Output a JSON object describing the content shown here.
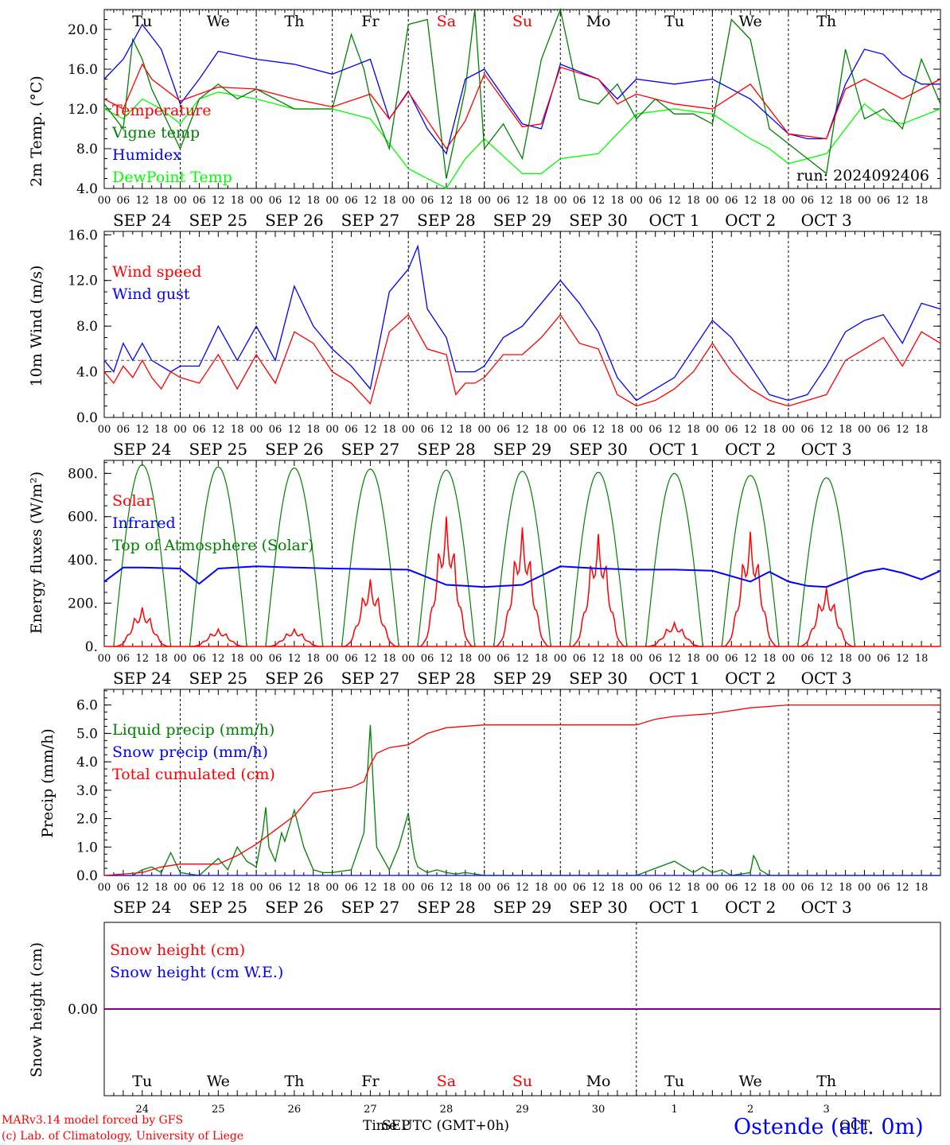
{
  "days": {
    "weekday_labels": [
      "Tu",
      "We",
      "Th",
      "Fr",
      "Sa",
      "Su",
      "Mo",
      "Tu",
      "We",
      "Th"
    ],
    "date_labels": [
      "SEP 24",
      "SEP 25",
      "SEP 26",
      "SEP 27",
      "SEP 28",
      "SEP 29",
      "SEP 30",
      "OCT  1",
      "OCT  2",
      "OCT  3"
    ],
    "day_numbers": [
      "24",
      "25",
      "26",
      "27",
      "28",
      "29",
      "30",
      "1",
      "2",
      "3"
    ],
    "hour_ticks": [
      "00",
      "06",
      "12",
      "18"
    ],
    "weekend_color": "#ff0000"
  },
  "footer": {
    "model": "MARv3.14 model forced by GFS",
    "lab": "(c) Lab. of Climatology, University of Liege",
    "time_axis": "Time UTC (GMT+0h)",
    "month_overlay": "SEP",
    "oct_overlay": "OCT",
    "station": "Ostende (alt. 0m)"
  },
  "chart_data": [
    {
      "type": "line",
      "ylabel": "2m Temp. (°C)",
      "ylim": [
        4.0,
        22.0
      ],
      "yticks": [
        "4.0",
        "8.0",
        "12.0",
        "16.0",
        "20.0"
      ],
      "annotation": "run: 2024092406",
      "x_unit": "hours since 2024-09-24 00 UTC",
      "legend_placement": "top-left",
      "series": [
        {
          "name": "Temperature",
          "color": "#ff0000",
          "x": [
            0,
            6,
            12,
            15,
            24,
            36,
            48,
            60,
            72,
            84,
            90,
            96,
            108,
            114,
            120,
            132,
            138,
            144,
            156,
            162,
            168,
            180,
            192,
            204,
            216,
            228,
            234,
            240,
            246,
            252,
            264
          ],
          "values": [
            13.0,
            12.0,
            16.5,
            15.0,
            12.8,
            14.2,
            14.0,
            13.0,
            12.2,
            13.5,
            11.0,
            13.7,
            8.0,
            10.8,
            15.5,
            10.2,
            10.5,
            16.2,
            15.0,
            12.5,
            13.5,
            12.5,
            12.0,
            14.5,
            9.5,
            9.0,
            14.0,
            15.0,
            14.0,
            13.0,
            15.0
          ]
        },
        {
          "name": "Vigne temp",
          "color": "#008000",
          "x": [
            0,
            6,
            9,
            12,
            15,
            24,
            30,
            36,
            42,
            48,
            60,
            72,
            78,
            82,
            84,
            90,
            96,
            102,
            108,
            114,
            117,
            120,
            126,
            132,
            138,
            144,
            150,
            156,
            162,
            168,
            174,
            180,
            186,
            192,
            198,
            204,
            210,
            216,
            222,
            228,
            234,
            240,
            246,
            252,
            258,
            264
          ],
          "values": [
            12.5,
            10.0,
            19.0,
            17.0,
            14.0,
            8.0,
            13.0,
            14.5,
            13.0,
            14.0,
            12.0,
            12.0,
            19.5,
            16.0,
            13.0,
            8.0,
            20.5,
            21.0,
            5.0,
            14.0,
            22.0,
            8.0,
            10.5,
            7.0,
            17.0,
            22.0,
            13.0,
            12.5,
            14.5,
            11.0,
            13.0,
            11.5,
            11.5,
            10.5,
            21.0,
            19.0,
            10.0,
            8.5,
            7.0,
            5.5,
            18.0,
            11.0,
            12.0,
            10.0,
            17.0,
            12.5
          ]
        },
        {
          "name": "Humidex",
          "color": "#0000ff",
          "x": [
            0,
            6,
            12,
            18,
            24,
            30,
            36,
            48,
            60,
            72,
            84,
            90,
            96,
            102,
            108,
            114,
            120,
            132,
            138,
            144,
            156,
            162,
            168,
            180,
            192,
            204,
            216,
            222,
            228,
            234,
            240,
            246,
            252,
            258,
            264
          ],
          "values": [
            15.0,
            17.0,
            20.5,
            18.0,
            12.5,
            15.0,
            17.8,
            17.0,
            16.5,
            15.5,
            17.0,
            11.0,
            13.8,
            10.0,
            7.5,
            15.0,
            16.0,
            10.5,
            10.0,
            16.5,
            15.0,
            13.0,
            15.0,
            14.5,
            15.0,
            13.0,
            9.5,
            9.0,
            9.0,
            14.5,
            18.0,
            17.5,
            15.5,
            14.5,
            14.5
          ]
        },
        {
          "name": "DewPoint Temp",
          "color": "#00ff00",
          "x": [
            0,
            6,
            12,
            18,
            24,
            30,
            36,
            48,
            60,
            72,
            84,
            96,
            108,
            114,
            120,
            132,
            138,
            144,
            156,
            168,
            180,
            192,
            204,
            210,
            216,
            222,
            228,
            234,
            240,
            246,
            252,
            264
          ],
          "values": [
            12.0,
            11.0,
            13.0,
            12.0,
            10.5,
            13.0,
            13.7,
            13.0,
            12.0,
            12.0,
            11.0,
            6.0,
            4.0,
            7.0,
            9.0,
            5.5,
            5.5,
            7.0,
            7.5,
            11.5,
            12.0,
            11.5,
            9.0,
            8.0,
            6.5,
            7.0,
            7.5,
            10.0,
            12.5,
            11.0,
            10.5,
            12.0
          ]
        }
      ]
    },
    {
      "type": "line",
      "ylabel": "10m Wind (m/s)",
      "ylim": [
        0.0,
        16.0
      ],
      "yticks": [
        "0.0",
        "4.0",
        "8.0",
        "12.0",
        "16.0"
      ],
      "reference_line": 5.0,
      "x_unit": "hours since 2024-09-24 00 UTC",
      "legend_placement": "top-left",
      "series": [
        {
          "name": "Wind speed",
          "color": "#ff0000",
          "x": [
            0,
            3,
            6,
            9,
            12,
            15,
            18,
            21,
            24,
            30,
            36,
            42,
            48,
            54,
            60,
            66,
            72,
            78,
            84,
            90,
            96,
            102,
            108,
            111,
            114,
            117,
            120,
            126,
            132,
            138,
            144,
            150,
            156,
            162,
            168,
            174,
            180,
            186,
            192,
            198,
            204,
            210,
            216,
            222,
            228,
            234,
            240,
            246,
            252,
            258,
            264
          ],
          "values": [
            4.0,
            3.0,
            4.5,
            3.5,
            5.0,
            3.5,
            2.5,
            4.0,
            3.5,
            3.0,
            5.5,
            2.5,
            5.5,
            3.0,
            7.5,
            6.5,
            4.0,
            3.0,
            1.2,
            7.5,
            9.0,
            6.0,
            5.5,
            2.0,
            3.0,
            3.0,
            3.5,
            5.5,
            5.5,
            7.0,
            9.0,
            6.5,
            6.0,
            2.0,
            1.0,
            1.5,
            2.5,
            4.0,
            6.5,
            4.0,
            2.5,
            1.5,
            1.0,
            1.5,
            2.0,
            5.0,
            6.0,
            7.0,
            4.5,
            7.5,
            6.5
          ]
        },
        {
          "name": "Wind gust",
          "color": "#0000ff",
          "x": [
            0,
            3,
            6,
            9,
            12,
            15,
            18,
            21,
            24,
            30,
            36,
            42,
            48,
            54,
            60,
            66,
            72,
            78,
            84,
            90,
            96,
            99,
            102,
            108,
            111,
            114,
            117,
            120,
            126,
            132,
            138,
            144,
            150,
            156,
            162,
            168,
            174,
            180,
            186,
            192,
            198,
            204,
            210,
            216,
            222,
            228,
            234,
            240,
            246,
            252,
            258,
            264
          ],
          "values": [
            5.0,
            4.0,
            6.5,
            5.0,
            6.5,
            5.0,
            4.5,
            4.0,
            4.5,
            4.5,
            8.0,
            5.0,
            8.0,
            5.0,
            11.5,
            8.0,
            6.0,
            4.5,
            2.5,
            11.0,
            13.0,
            15.0,
            9.5,
            7.0,
            4.0,
            4.0,
            4.0,
            4.5,
            7.0,
            8.0,
            10.0,
            12.0,
            10.0,
            7.5,
            3.5,
            1.5,
            2.5,
            3.5,
            6.0,
            8.5,
            7.0,
            4.5,
            2.0,
            1.5,
            2.0,
            4.5,
            7.5,
            8.5,
            9.0,
            6.5,
            10.0,
            9.5
          ]
        }
      ]
    },
    {
      "type": "line",
      "ylabel": "Energy fluxes (W/m²)",
      "ylim": [
        0,
        860
      ],
      "yticks": [
        "0.",
        "200.",
        "400.",
        "600.",
        "800."
      ],
      "x_unit": "hours since 2024-09-24 00 UTC",
      "legend_placement": "top-left",
      "toa_peaks": [
        840,
        830,
        825,
        820,
        815,
        810,
        805,
        800,
        790,
        780
      ],
      "solar_peaks": [
        180,
        80,
        80,
        310,
        600,
        550,
        520,
        110,
        530,
        270
      ],
      "series": [
        {
          "name": "Solar",
          "color": "#ff0000"
        },
        {
          "name": "Infrared",
          "color": "#0000ff",
          "x": [
            0,
            6,
            12,
            24,
            30,
            36,
            48,
            60,
            72,
            96,
            108,
            114,
            120,
            132,
            144,
            156,
            168,
            180,
            192,
            204,
            210,
            216,
            222,
            228,
            240,
            246,
            252,
            258,
            264
          ],
          "values": [
            300,
            365,
            365,
            360,
            290,
            360,
            370,
            365,
            360,
            355,
            285,
            280,
            275,
            285,
            370,
            360,
            355,
            355,
            350,
            300,
            345,
            300,
            280,
            275,
            345,
            360,
            340,
            310,
            350
          ]
        },
        {
          "name": "Top of Atmosphere (Solar)",
          "color": "#008000"
        }
      ]
    },
    {
      "type": "line",
      "ylabel": "Precip (mm/h)",
      "ylim": [
        0.0,
        6.5
      ],
      "yticks": [
        "0.0",
        "1.0",
        "2.0",
        "3.0",
        "4.0",
        "5.0",
        "6.0"
      ],
      "x_unit": "hours since 2024-09-24 00 UTC",
      "legend_placement": "top-left",
      "series": [
        {
          "name": "Liquid precip (mm/h)",
          "color": "#008000",
          "x": [
            0,
            9,
            12,
            15,
            18,
            21,
            24,
            30,
            36,
            39,
            42,
            45,
            48,
            50,
            51,
            52,
            54,
            56,
            57,
            60,
            63,
            66,
            69,
            72,
            78,
            82,
            84,
            85,
            86,
            88,
            90,
            93,
            96,
            97,
            98,
            99,
            102,
            105,
            108,
            111,
            114,
            120,
            126,
            132,
            168,
            180,
            183,
            186,
            189,
            192,
            195,
            198,
            204,
            205,
            206,
            207,
            210,
            216,
            228,
            240,
            246,
            252,
            264
          ],
          "values": [
            0,
            0,
            0.2,
            0.3,
            0.1,
            0.8,
            0.1,
            0,
            0.6,
            0.2,
            1.0,
            0.5,
            0.3,
            1.5,
            2.4,
            1.0,
            0.5,
            1.5,
            1.2,
            2.3,
            1.0,
            0.2,
            0.1,
            0.1,
            0.2,
            1.5,
            5.3,
            3.0,
            1.0,
            0.6,
            0.2,
            1.0,
            2.2,
            1.3,
            0.6,
            0.3,
            0.1,
            0.2,
            0.1,
            0.05,
            0.1,
            0,
            0,
            0,
            0,
            0.5,
            0.3,
            0.1,
            0.3,
            0.1,
            0.2,
            0,
            0.1,
            0.7,
            0.5,
            0.2,
            0,
            0,
            0,
            0,
            0,
            0,
            0
          ]
        },
        {
          "name": "Snow precip (mm/h)",
          "color": "#0000ff",
          "x": [
            0,
            264
          ],
          "values": [
            0,
            0
          ]
        },
        {
          "name": "Total cumulated (cm)",
          "color": "#ff0000",
          "x": [
            0,
            12,
            18,
            24,
            36,
            42,
            48,
            54,
            60,
            66,
            72,
            78,
            82,
            84,
            86,
            90,
            96,
            102,
            108,
            120,
            168,
            174,
            180,
            192,
            204,
            216,
            228,
            240,
            264
          ],
          "values": [
            0,
            0.1,
            0.3,
            0.4,
            0.4,
            0.7,
            1.1,
            1.6,
            2.1,
            2.9,
            3.0,
            3.1,
            3.3,
            3.9,
            4.3,
            4.5,
            4.6,
            5.0,
            5.2,
            5.3,
            5.3,
            5.5,
            5.6,
            5.7,
            5.9,
            6.0,
            6.0,
            6.0,
            6.0
          ]
        }
      ]
    },
    {
      "type": "line",
      "ylabel": "Snow height (cm)",
      "yticks": [
        "0.00"
      ],
      "x_unit": "hours since 2024-09-24 00 UTC",
      "legend_placement": "top-left",
      "series": [
        {
          "name": "Snow height (cm)",
          "color": "#ff0000",
          "x": [
            0,
            264
          ],
          "values": [
            0,
            0
          ]
        },
        {
          "name": "Snow height (cm W.E.)",
          "color": "#0000ff",
          "x": [
            0,
            264
          ],
          "values": [
            0,
            0
          ]
        }
      ]
    }
  ]
}
